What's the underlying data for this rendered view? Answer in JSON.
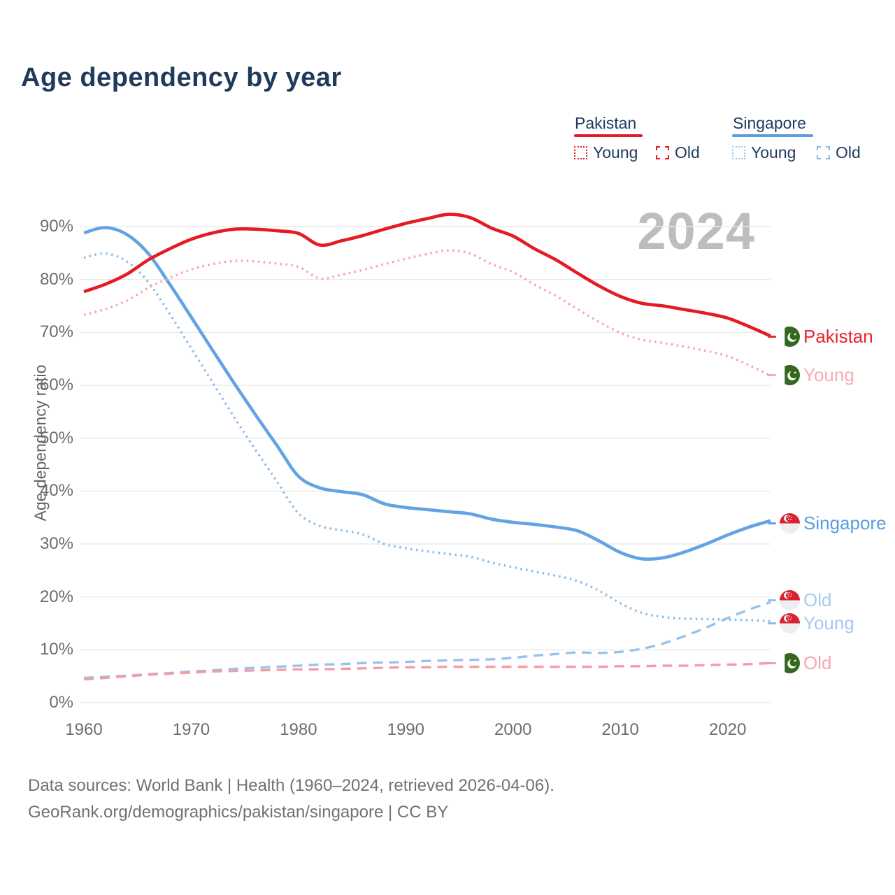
{
  "title": "Age dependency by year",
  "watermark": "2024",
  "legend": {
    "groups": [
      {
        "label": "Pakistan",
        "color": "#e51b23",
        "items": [
          {
            "label": "Young",
            "style": "dotted",
            "swatch_color": "#e51b23"
          },
          {
            "label": "Old",
            "style": "dashed",
            "swatch_color": "#e51b23"
          }
        ]
      },
      {
        "label": "Singapore",
        "color": "#5b9ce0",
        "items": [
          {
            "label": "Young",
            "style": "dotted",
            "swatch_color": "#9cc4ee"
          },
          {
            "label": "Old",
            "style": "dashed",
            "swatch_color": "#8abaec"
          }
        ]
      }
    ]
  },
  "y_axis": {
    "title": "Age dependency ratio"
  },
  "chart_data": {
    "type": "line",
    "title": "Age dependency by year",
    "xlabel": "",
    "ylabel": "Age dependency ratio",
    "xlim": [
      1960,
      2024
    ],
    "ylim": [
      0,
      95
    ],
    "grid": true,
    "legend_position": "top-right",
    "x": [
      1960,
      1962,
      1964,
      1966,
      1968,
      1970,
      1972,
      1974,
      1976,
      1978,
      1980,
      1982,
      1984,
      1986,
      1988,
      1990,
      1992,
      1994,
      1996,
      1998,
      2000,
      2002,
      2004,
      2006,
      2008,
      2010,
      2012,
      2014,
      2016,
      2018,
      2020,
      2022,
      2024
    ],
    "y_ticks": [
      {
        "value": 0,
        "label": "0%"
      },
      {
        "value": 10,
        "label": "10%"
      },
      {
        "value": 20,
        "label": "20%"
      },
      {
        "value": 30,
        "label": "30%"
      },
      {
        "value": 40,
        "label": "40%"
      },
      {
        "value": 50,
        "label": "50%"
      },
      {
        "value": 60,
        "label": "60%"
      },
      {
        "value": 70,
        "label": "70%"
      },
      {
        "value": 80,
        "label": "80%"
      },
      {
        "value": 90,
        "label": "90%"
      }
    ],
    "x_ticks": [
      {
        "value": 1960,
        "label": "1960"
      },
      {
        "value": 1970,
        "label": "1970"
      },
      {
        "value": 1980,
        "label": "1980"
      },
      {
        "value": 1990,
        "label": "1990"
      },
      {
        "value": 2000,
        "label": "2000"
      },
      {
        "value": 2010,
        "label": "2010"
      },
      {
        "value": 2020,
        "label": "2020"
      }
    ],
    "series": [
      {
        "id": "pakistan-total",
        "name": "Pakistan",
        "country": "Pakistan",
        "component": "Total",
        "style": "solid",
        "color": "#e51b23",
        "values": [
          77.7,
          79.1,
          81.0,
          83.7,
          85.8,
          87.6,
          88.8,
          89.5,
          89.5,
          89.2,
          88.7,
          86.5,
          87.3,
          88.3,
          89.5,
          90.6,
          91.5,
          92.3,
          91.7,
          89.7,
          88.2,
          85.8,
          83.7,
          81.2,
          78.8,
          76.8,
          75.5,
          75.0,
          74.3,
          73.6,
          72.7,
          71.1,
          69.3
        ]
      },
      {
        "id": "pakistan-young",
        "name": "Pakistan Young",
        "country": "Pakistan",
        "component": "Young",
        "style": "dotted",
        "color": "#f7a3ab",
        "values": [
          73.3,
          74.4,
          76.0,
          78.4,
          80.3,
          81.9,
          82.9,
          83.5,
          83.4,
          83.0,
          82.4,
          80.2,
          80.9,
          81.8,
          82.9,
          83.9,
          84.8,
          85.5,
          84.9,
          82.9,
          81.4,
          79.0,
          76.9,
          74.4,
          72.0,
          69.9,
          68.6,
          68.0,
          67.3,
          66.5,
          65.5,
          63.8,
          61.8
        ]
      },
      {
        "id": "pakistan-old",
        "name": "Pakistan Old",
        "country": "Pakistan",
        "component": "Old",
        "style": "dashed",
        "color": "#f59ba4",
        "values": [
          4.4,
          4.7,
          5.0,
          5.3,
          5.5,
          5.7,
          5.9,
          6.0,
          6.1,
          6.2,
          6.3,
          6.3,
          6.4,
          6.5,
          6.6,
          6.7,
          6.7,
          6.8,
          6.8,
          6.8,
          6.8,
          6.8,
          6.8,
          6.8,
          6.8,
          6.9,
          6.9,
          7.0,
          7.0,
          7.1,
          7.2,
          7.3,
          7.5
        ]
      },
      {
        "id": "singapore-total",
        "name": "Singapore",
        "country": "Singapore",
        "component": "Total",
        "style": "solid",
        "color": "#64a3e3",
        "values": [
          88.8,
          89.8,
          88.5,
          84.9,
          79.1,
          72.9,
          66.6,
          60.4,
          54.4,
          48.6,
          42.8,
          40.6,
          39.9,
          39.3,
          37.6,
          36.9,
          36.5,
          36.1,
          35.7,
          34.7,
          34.1,
          33.7,
          33.2,
          32.5,
          30.6,
          28.4,
          27.2,
          27.4,
          28.5,
          30.0,
          31.7,
          33.2,
          34.4
        ]
      },
      {
        "id": "singapore-young",
        "name": "Singapore Young",
        "country": "Singapore",
        "component": "Young",
        "style": "dotted",
        "color": "#8cbae9",
        "values": [
          84.1,
          84.9,
          83.4,
          79.5,
          73.5,
          67.0,
          60.5,
          54.0,
          47.8,
          41.8,
          35.8,
          33.4,
          32.6,
          31.8,
          30.0,
          29.2,
          28.6,
          28.1,
          27.6,
          26.5,
          25.6,
          24.8,
          24.0,
          23.0,
          21.2,
          18.8,
          17.0,
          16.2,
          15.9,
          15.8,
          15.7,
          15.6,
          15.4
        ]
      },
      {
        "id": "singapore-old",
        "name": "Singapore Old",
        "country": "Singapore",
        "component": "Old",
        "style": "dashed",
        "color": "#96c2ee",
        "values": [
          4.7,
          4.9,
          5.1,
          5.4,
          5.6,
          5.9,
          6.1,
          6.4,
          6.6,
          6.8,
          7.0,
          7.2,
          7.3,
          7.5,
          7.6,
          7.7,
          7.9,
          8.0,
          8.1,
          8.2,
          8.5,
          8.9,
          9.2,
          9.5,
          9.4,
          9.6,
          10.2,
          11.2,
          12.6,
          14.2,
          16.0,
          17.6,
          19.0
        ]
      }
    ]
  },
  "right_labels": [
    {
      "text": "Pakistan",
      "flag": "pakistan",
      "color": "#e8232e",
      "stub_color": "#e8232e"
    },
    {
      "text": "Young",
      "flag": "pakistan",
      "color": "#f9abb3",
      "stub_color": "#f9abb3"
    },
    {
      "text": "Singapore",
      "flag": "singapore",
      "color": "#5b9ce0",
      "stub_color": "#64a3e3"
    },
    {
      "text": "Old",
      "flag": "singapore",
      "color": "#a6c9f0",
      "stub_color": "#96c2ee"
    },
    {
      "text": "Young",
      "flag": "singapore",
      "color": "#a6c9f0",
      "stub_color": "#8cbae9"
    },
    {
      "text": "Old",
      "flag": "pakistan",
      "color": "#f9a6ad",
      "stub_color": "#f59ba4"
    }
  ],
  "footer": {
    "line1": "Data sources: World Bank | Health (1960–2024, retrieved 2026-04-06).",
    "line2": "GeoRank.org/demographics/pakistan/singapore | CC BY"
  }
}
